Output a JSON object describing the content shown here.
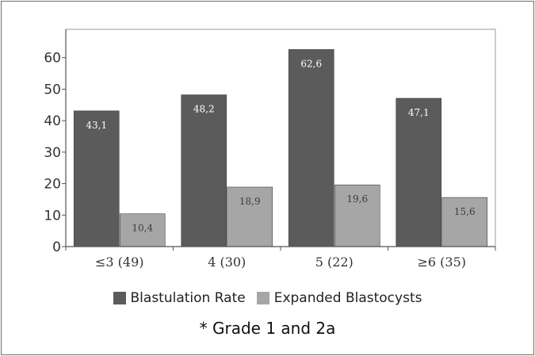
{
  "chart_data": {
    "type": "bar",
    "categories": [
      "≤3 (49)",
      "4 (30)",
      "5 (22)",
      "≥6 (35)"
    ],
    "series": [
      {
        "name": "Blastulation Rate",
        "values": [
          43.1,
          48.2,
          62.6,
          47.1
        ],
        "labels": [
          "43,1",
          "48,2",
          "62,6",
          "47,1"
        ],
        "color": "#5b5b5b",
        "label_color": "#ffffff"
      },
      {
        "name": "Expanded Blastocysts",
        "values": [
          10.4,
          18.9,
          19.6,
          15.6
        ],
        "labels": [
          "10,4",
          "18,9",
          "19,6",
          "15,6"
        ],
        "color": "#a6a6a6",
        "label_color": "#3a3a3a"
      }
    ],
    "yticks": [
      0,
      10,
      20,
      30,
      40,
      50,
      60
    ],
    "ylim": [
      0,
      69
    ],
    "title": "",
    "xlabel": "",
    "ylabel": "",
    "grid": false,
    "legend_position": "bottom"
  },
  "legend": {
    "items": [
      {
        "label": "Blastulation Rate",
        "color": "#5b5b5b"
      },
      {
        "label": "Expanded Blastocysts",
        "color": "#a6a6a6"
      }
    ]
  },
  "footnote": "* Grade 1 and 2a"
}
